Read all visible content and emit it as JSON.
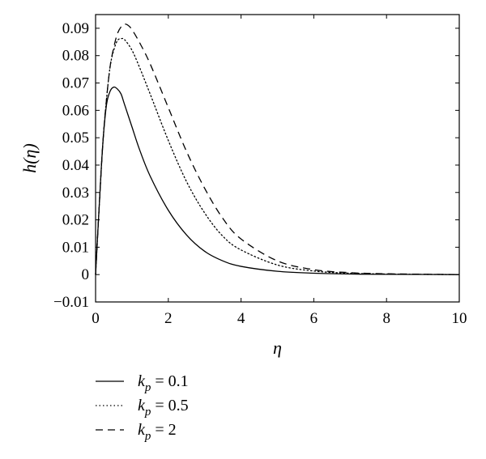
{
  "chart_data": {
    "type": "line",
    "title": "",
    "xlabel": "η",
    "ylabel": "h(η)",
    "xlim": [
      0,
      10
    ],
    "ylim": [
      -0.01,
      0.095
    ],
    "x_ticks": [
      0,
      2,
      4,
      6,
      8,
      10
    ],
    "x_tick_labels": [
      "0",
      "2",
      "4",
      "6",
      "8",
      "10"
    ],
    "y_ticks": [
      -0.01,
      0,
      0.01,
      0.02,
      0.03,
      0.04,
      0.05,
      0.06,
      0.07,
      0.08,
      0.09
    ],
    "y_tick_labels": [
      "−0.01",
      "0",
      "0.01",
      "0.02",
      "0.03",
      "0.04",
      "0.05",
      "0.06",
      "0.07",
      "0.08",
      "0.09"
    ],
    "grid": false,
    "legend_position": "bottom-left, below plot",
    "series": [
      {
        "name": "k_p = 0.1",
        "legend_symbol": "k",
        "legend_subscript": "p",
        "legend_value": " = 0.1",
        "style": "solid",
        "x": [
          0,
          0.1,
          0.2,
          0.3,
          0.4,
          0.5,
          0.6,
          0.7,
          0.8,
          1.0,
          1.2,
          1.5,
          2.0,
          2.5,
          3.0,
          3.5,
          4.0,
          5.0,
          6.0,
          7.0,
          8.0,
          10.0
        ],
        "y": [
          0,
          0.025,
          0.048,
          0.062,
          0.067,
          0.0685,
          0.0678,
          0.066,
          0.062,
          0.054,
          0.046,
          0.036,
          0.0235,
          0.0145,
          0.0085,
          0.005,
          0.003,
          0.0012,
          0.0005,
          0.0002,
          0.0001,
          0
        ]
      },
      {
        "name": "k_p = 0.5",
        "legend_symbol": "k",
        "legend_subscript": "p",
        "legend_value": " = 0.5",
        "style": "dotted",
        "x": [
          0,
          0.1,
          0.2,
          0.3,
          0.4,
          0.5,
          0.6,
          0.7,
          0.8,
          1.0,
          1.2,
          1.5,
          2.0,
          2.5,
          3.0,
          3.5,
          4.0,
          5.0,
          6.0,
          7.0,
          8.0,
          10.0
        ],
        "y": [
          0,
          0.025,
          0.048,
          0.064,
          0.076,
          0.082,
          0.0855,
          0.0862,
          0.0858,
          0.082,
          0.076,
          0.066,
          0.049,
          0.034,
          0.0225,
          0.014,
          0.009,
          0.0035,
          0.0013,
          0.0005,
          0.0002,
          0
        ]
      },
      {
        "name": "k_p = 2",
        "legend_symbol": "k",
        "legend_subscript": "p",
        "legend_value": " = 2",
        "style": "dashed",
        "x": [
          0,
          0.1,
          0.2,
          0.3,
          0.4,
          0.5,
          0.6,
          0.7,
          0.8,
          0.9,
          1.0,
          1.2,
          1.5,
          2.0,
          2.5,
          3.0,
          3.5,
          4.0,
          5.0,
          6.0,
          7.0,
          8.0,
          10.0
        ],
        "y": [
          0,
          0.025,
          0.048,
          0.064,
          0.076,
          0.083,
          0.088,
          0.0905,
          0.0915,
          0.091,
          0.0895,
          0.085,
          0.077,
          0.061,
          0.045,
          0.0315,
          0.0205,
          0.013,
          0.005,
          0.0018,
          0.0007,
          0.0003,
          0
        ]
      }
    ]
  }
}
